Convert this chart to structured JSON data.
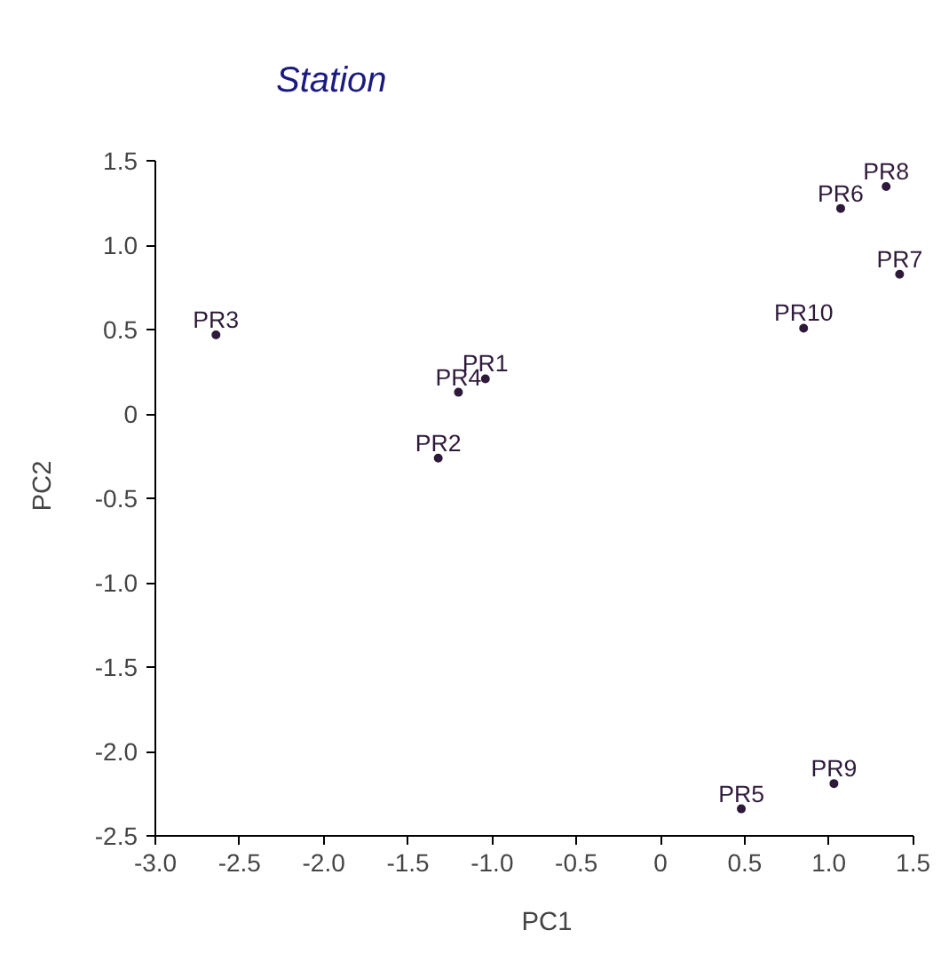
{
  "chart_data": {
    "type": "scatter",
    "title": "Station",
    "xlabel": "PC1",
    "ylabel": "PC2",
    "marker": "circle",
    "grid": false,
    "legend": false,
    "xlim": [
      -3.0,
      1.5
    ],
    "ylim": [
      -2.5,
      1.5
    ],
    "xticks": [
      {
        "value": -3.0,
        "label": "-3.0"
      },
      {
        "value": -2.5,
        "label": "-2.5"
      },
      {
        "value": -2.0,
        "label": "-2.0"
      },
      {
        "value": -1.5,
        "label": "-1.5"
      },
      {
        "value": -1.0,
        "label": "-1.0"
      },
      {
        "value": -0.5,
        "label": "-0.5"
      },
      0,
      {
        "value": 0.5,
        "label": "0.5"
      },
      {
        "value": 1.0,
        "label": "1.0"
      },
      {
        "value": 1.5,
        "label": "1.5"
      }
    ],
    "yticks": [
      {
        "value": -2.5,
        "label": "-2.5"
      },
      {
        "value": -2.0,
        "label": "-2.0"
      },
      {
        "value": -1.5,
        "label": "-1.5"
      },
      {
        "value": -1.0,
        "label": "-1.0"
      },
      {
        "value": -0.5,
        "label": "-0.5"
      },
      0,
      {
        "value": 0.5,
        "label": "0.5"
      },
      {
        "value": 1.0,
        "label": "1.0"
      },
      {
        "value": 1.5,
        "label": "1.5"
      }
    ],
    "series": [
      {
        "name": "PR1",
        "color": "#2e1a3a",
        "x": [
          -1.04
        ],
        "values": [
          0.21
        ]
      },
      {
        "name": "PR2",
        "color": "#2e1a3a",
        "x": [
          -1.32
        ],
        "values": [
          -0.26
        ]
      },
      {
        "name": "PR3",
        "color": "#2e1a3a",
        "x": [
          -2.64
        ],
        "values": [
          0.47
        ]
      },
      {
        "name": "PR4",
        "color": "#2e1a3a",
        "x": [
          -1.2
        ],
        "values": [
          0.13
        ]
      },
      {
        "name": "PR5",
        "color": "#2e1a3a",
        "x": [
          0.48
        ],
        "values": [
          -2.34
        ]
      },
      {
        "name": "PR6",
        "color": "#2e1a3a",
        "x": [
          1.07
        ],
        "values": [
          1.22
        ]
      },
      {
        "name": "PR7",
        "color": "#2e1a3a",
        "x": [
          1.42
        ],
        "values": [
          0.83
        ]
      },
      {
        "name": "PR8",
        "color": "#2e1a3a",
        "x": [
          1.34
        ],
        "values": [
          1.35
        ]
      },
      {
        "name": "PR9",
        "color": "#2e1a3a",
        "x": [
          1.03
        ],
        "values": [
          -2.19
        ]
      },
      {
        "name": "PR10",
        "color": "#2e1a3a",
        "x": [
          0.85
        ],
        "values": [
          0.51
        ]
      }
    ]
  }
}
